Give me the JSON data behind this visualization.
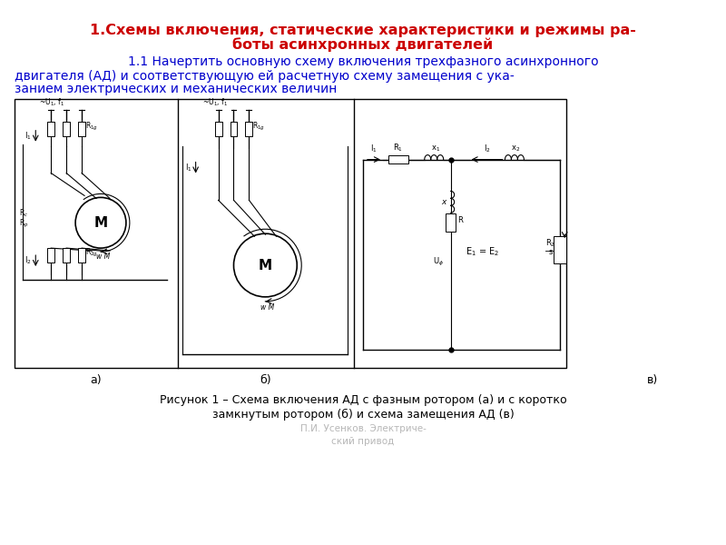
{
  "title_line1": "1.Схемы включения, статические характеристики и режимы ра-",
  "title_line2": "боты асинхронных двигателей",
  "title_color": "#cc0000",
  "title_fontsize": 11.5,
  "subtitle_line1": "1.1 Начертить основную схему включения трехфазного асинхронного",
  "subtitle_line2": "двигателя (АД) и соответствующую ей расчетную схему замещения с ука-",
  "subtitle_line3": "занием электрических и механических величин",
  "subtitle_color": "#0000cc",
  "subtitle_fontsize": 10,
  "caption_a": "а)",
  "caption_b": "б)",
  "caption_v": "в)",
  "caption_fontsize": 9,
  "figure_caption_line1": "Рисунок 1 – Схема включения АД с фазным ротором (а) и с коротко",
  "figure_caption_line2": "замкнутым ротором (б) и схема замещения АД (в)",
  "figure_caption_fontsize": 9,
  "watermark_line1": "П.И. Усенков. Электриче-",
  "watermark_line2": "ский привод",
  "bg_color": "#ffffff",
  "text_color": "#000000"
}
